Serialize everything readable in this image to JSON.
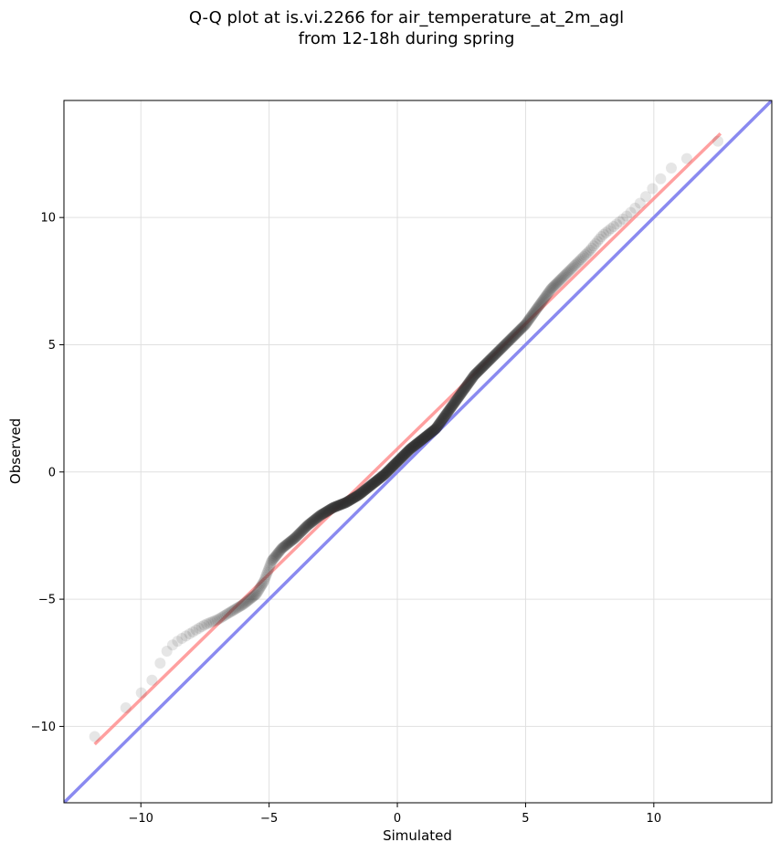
{
  "chart_data": {
    "type": "scatter",
    "title_lines": [
      "Q-Q plot at is.vi.2266 for air_temperature_at_2m_agl",
      "from 12-18h during spring"
    ],
    "xlabel": "Simulated",
    "ylabel": "Observed",
    "xlim": [
      -13.0,
      14.6
    ],
    "ylim": [
      -13.0,
      14.6
    ],
    "xticks": [
      {
        "value": -10,
        "label": "−10"
      },
      {
        "value": -5,
        "label": "−5"
      },
      {
        "value": 0,
        "label": "0"
      },
      {
        "value": 5,
        "label": "5"
      },
      {
        "value": 10,
        "label": "10"
      }
    ],
    "yticks": [
      {
        "value": -10,
        "label": "−10"
      },
      {
        "value": -5,
        "label": "−5"
      },
      {
        "value": 0,
        "label": "0"
      },
      {
        "value": 5,
        "label": "5"
      },
      {
        "value": 10,
        "label": "10"
      }
    ],
    "grid": true,
    "points_color": "#333333",
    "qq_curve": [
      [
        -11.8,
        -10.4
      ],
      [
        -11.5,
        -10.0
      ],
      [
        -11.0,
        -9.6
      ],
      [
        -10.5,
        -9.2
      ],
      [
        -10.0,
        -8.7
      ],
      [
        -9.5,
        -8.1
      ],
      [
        -9.2,
        -7.4
      ],
      [
        -8.9,
        -6.9
      ],
      [
        -8.5,
        -6.6
      ],
      [
        -8.0,
        -6.3
      ],
      [
        -7.5,
        -6.0
      ],
      [
        -7.0,
        -5.8
      ],
      [
        -6.5,
        -5.5
      ],
      [
        -6.0,
        -5.2
      ],
      [
        -5.5,
        -4.8
      ],
      [
        -5.2,
        -4.3
      ],
      [
        -4.9,
        -3.5
      ],
      [
        -4.5,
        -3.0
      ],
      [
        -4.0,
        -2.6
      ],
      [
        -3.5,
        -2.1
      ],
      [
        -3.0,
        -1.7
      ],
      [
        -2.5,
        -1.4
      ],
      [
        -2.0,
        -1.2
      ],
      [
        -1.5,
        -0.9
      ],
      [
        -1.0,
        -0.5
      ],
      [
        -0.5,
        -0.1
      ],
      [
        0.0,
        0.4
      ],
      [
        0.5,
        0.9
      ],
      [
        1.0,
        1.3
      ],
      [
        1.5,
        1.7
      ],
      [
        2.0,
        2.4
      ],
      [
        2.5,
        3.1
      ],
      [
        3.0,
        3.8
      ],
      [
        3.5,
        4.3
      ],
      [
        4.0,
        4.8
      ],
      [
        4.5,
        5.3
      ],
      [
        5.0,
        5.8
      ],
      [
        5.5,
        6.5
      ],
      [
        6.0,
        7.2
      ],
      [
        6.5,
        7.7
      ],
      [
        7.0,
        8.2
      ],
      [
        7.5,
        8.7
      ],
      [
        8.0,
        9.3
      ],
      [
        8.5,
        9.7
      ],
      [
        9.0,
        10.1
      ],
      [
        9.5,
        10.6
      ],
      [
        10.0,
        11.2
      ],
      [
        10.5,
        11.8
      ],
      [
        11.0,
        12.2
      ],
      [
        11.5,
        12.4
      ],
      [
        12.0,
        12.8
      ],
      [
        12.5,
        13.0
      ]
    ],
    "fit_line": {
      "color": "#ff8080",
      "from": [
        -11.8,
        -10.7
      ],
      "to": [
        12.6,
        13.3
      ]
    },
    "identity_line": {
      "color": "#8a8af0",
      "from": [
        -13.0,
        -13.0
      ],
      "to": [
        14.6,
        14.6
      ]
    }
  }
}
